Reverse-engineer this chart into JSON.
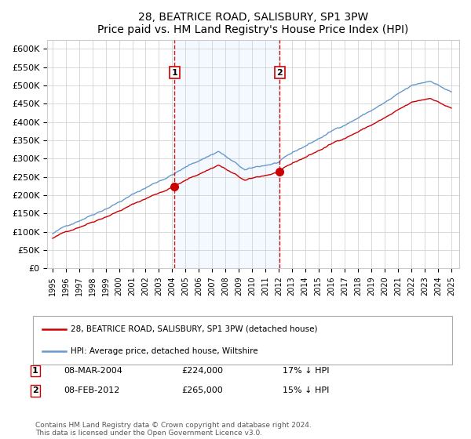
{
  "title": "28, BEATRICE ROAD, SALISBURY, SP1 3PW",
  "subtitle": "Price paid vs. HM Land Registry's House Price Index (HPI)",
  "legend_line1": "28, BEATRICE ROAD, SALISBURY, SP1 3PW (detached house)",
  "legend_line2": "HPI: Average price, detached house, Wiltshire",
  "annotation1_date": "08-MAR-2004",
  "annotation1_price": 224000,
  "annotation1_pct": "17% ↓ HPI",
  "annotation2_date": "08-FEB-2012",
  "annotation2_price": 265000,
  "annotation2_pct": "15% ↓ HPI",
  "footnote": "Contains HM Land Registry data © Crown copyright and database right 2024.\nThis data is licensed under the Open Government Licence v3.0.",
  "hpi_color": "#6699cc",
  "price_color": "#cc0000",
  "marker_color": "#cc0000",
  "vline_color": "#cc0000",
  "shading_color": "#ddeeff",
  "grid_color": "#cccccc",
  "yticks": [
    0,
    50000,
    100000,
    150000,
    200000,
    250000,
    300000,
    350000,
    400000,
    450000,
    500000,
    550000,
    600000
  ],
  "x_start_year": 1995,
  "x_end_year": 2025,
  "sale1_year": 2004.18,
  "sale2_year": 2012.1,
  "n_points": 366
}
